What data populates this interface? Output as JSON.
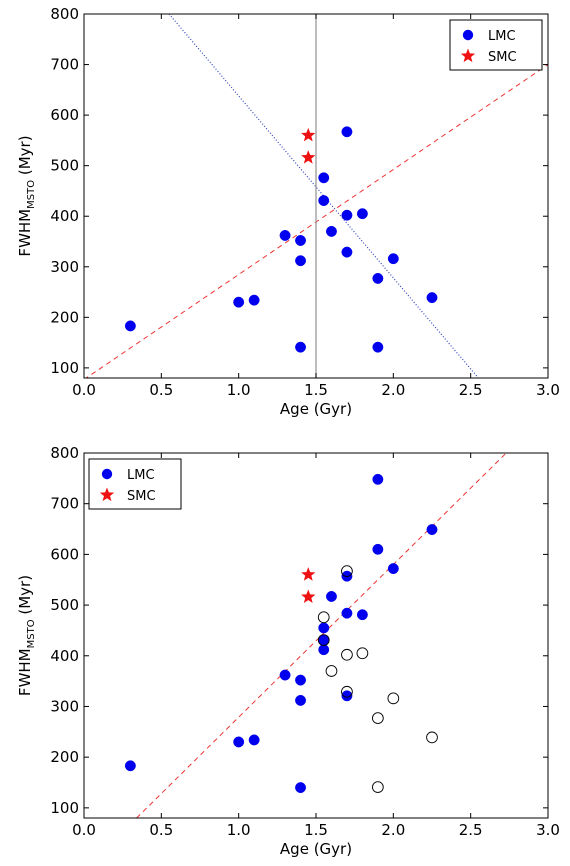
{
  "chart_data": [
    {
      "type": "scatter",
      "xlabel": "Age (Gyr)",
      "ylabel_main": "FWHM",
      "ylabel_sub": "MSTO",
      "ylabel_unit": " (Myr)",
      "xlim": [
        0.0,
        3.0
      ],
      "ylim": [
        80,
        800
      ],
      "xticks": [
        "0.0",
        "0.5",
        "1.0",
        "1.5",
        "2.0",
        "2.5",
        "3.0"
      ],
      "yticks": [
        "100",
        "200",
        "300",
        "400",
        "500",
        "600",
        "700",
        "800"
      ],
      "legend_position": "top-right",
      "series": [
        {
          "name": "LMC",
          "marker": "circle",
          "color": "#0000ee",
          "x": [
            0.3,
            1.0,
            1.1,
            1.3,
            1.4,
            1.4,
            1.4,
            1.55,
            1.55,
            1.6,
            1.7,
            1.7,
            1.7,
            1.8,
            1.9,
            1.9,
            2.0,
            2.25
          ],
          "y": [
            183,
            230,
            234,
            362,
            352,
            312,
            141,
            476,
            431,
            370,
            567,
            402,
            329,
            405,
            277,
            141,
            316,
            239
          ]
        },
        {
          "name": "SMC",
          "marker": "star",
          "color": "#ee1111",
          "x": [
            1.45,
            1.45
          ],
          "y": [
            560,
            516
          ]
        }
      ],
      "lines": [
        {
          "style": "dashed",
          "color": "#ee3333",
          "x": [
            0.0,
            3.0
          ],
          "y": [
            77,
            700
          ]
        },
        {
          "style": "dotted",
          "color": "#3344bb",
          "x": [
            0.55,
            2.55
          ],
          "y": [
            800,
            80
          ]
        },
        {
          "style": "solid",
          "color": "#999999",
          "x": [
            1.5,
            1.5
          ],
          "y": [
            80,
            800
          ]
        }
      ]
    },
    {
      "type": "scatter",
      "xlabel": "Age (Gyr)",
      "ylabel_main": "FWHM",
      "ylabel_sub": "MSTO",
      "ylabel_unit": " (Myr)",
      "xlim": [
        0.0,
        3.0
      ],
      "ylim": [
        80,
        800
      ],
      "xticks": [
        "0.0",
        "0.5",
        "1.0",
        "1.5",
        "2.0",
        "2.5",
        "3.0"
      ],
      "yticks": [
        "100",
        "200",
        "300",
        "400",
        "500",
        "600",
        "700",
        "800"
      ],
      "legend_position": "top-left",
      "series": [
        {
          "name": "LMC",
          "marker": "circle",
          "color": "#0000ee",
          "x": [
            0.3,
            1.0,
            1.1,
            1.3,
            1.4,
            1.4,
            1.4,
            1.55,
            1.55,
            1.55,
            1.6,
            1.7,
            1.7,
            1.7,
            1.8,
            1.9,
            1.9,
            2.0,
            2.25
          ],
          "y": [
            183,
            230,
            234,
            362,
            352,
            312,
            140,
            455,
            431,
            412,
            517,
            557,
            484,
            321,
            481,
            748,
            610,
            572,
            649
          ]
        },
        {
          "name": "SMC",
          "marker": "star",
          "color": "#ee1111",
          "x": [
            1.45,
            1.45
          ],
          "y": [
            560,
            516
          ]
        },
        {
          "marker": "open-circle",
          "color": "#000000",
          "x": [
            1.55,
            1.55,
            1.6,
            1.7,
            1.7,
            1.7,
            1.8,
            1.9,
            1.9,
            2.0,
            2.25
          ],
          "y": [
            476,
            431,
            370,
            567,
            402,
            329,
            405,
            277,
            141,
            316,
            239
          ]
        }
      ],
      "lines": [
        {
          "style": "dashed",
          "color": "#ee3333",
          "x": [
            0.34,
            2.73
          ],
          "y": [
            80,
            800
          ]
        }
      ]
    }
  ]
}
